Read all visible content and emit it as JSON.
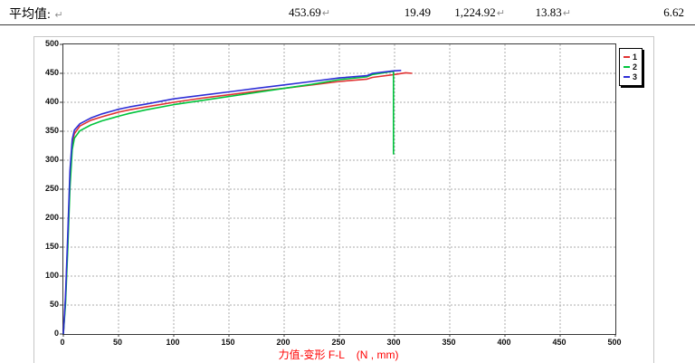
{
  "header": {
    "label": "平均值:",
    "label_mark": "↵",
    "values": [
      {
        "text": "453.69",
        "mark": "↵"
      },
      {
        "text": "19.49",
        "mark": ""
      },
      {
        "text": "1,224.92",
        "mark": "↵"
      },
      {
        "text": "13.83",
        "mark": "↵"
      },
      {
        "text": "6.62",
        "mark": ""
      }
    ]
  },
  "chart_data": {
    "type": "line",
    "title": "",
    "xlabel": "力值-变形 F-L    (N , mm)",
    "xlabel_color": "#ff0000",
    "ylabel": "",
    "xlim": [
      0,
      500
    ],
    "ylim": [
      0,
      500
    ],
    "x_ticks": [
      0,
      50,
      100,
      150,
      200,
      250,
      300,
      350,
      400,
      450,
      500
    ],
    "y_ticks": [
      0,
      50,
      100,
      150,
      200,
      250,
      300,
      350,
      400,
      450,
      500
    ],
    "grid": "dashed",
    "grid_color": "#ababab",
    "axis_color": "#383838",
    "legend_position": "top-right-outside",
    "series": [
      {
        "name": "1",
        "color": "#e03232",
        "points": [
          [
            0,
            0
          ],
          [
            2,
            60
          ],
          [
            4,
            160
          ],
          [
            6,
            270
          ],
          [
            8,
            330
          ],
          [
            10,
            346
          ],
          [
            15,
            359
          ],
          [
            25,
            369
          ],
          [
            35,
            375
          ],
          [
            50,
            383
          ],
          [
            60,
            387
          ],
          [
            75,
            392
          ],
          [
            100,
            400
          ],
          [
            125,
            407
          ],
          [
            150,
            413
          ],
          [
            175,
            419
          ],
          [
            200,
            424
          ],
          [
            225,
            430
          ],
          [
            250,
            436
          ],
          [
            275,
            440
          ],
          [
            280,
            443
          ],
          [
            300,
            448
          ],
          [
            310,
            451
          ],
          [
            316,
            450
          ]
        ]
      },
      {
        "name": "2",
        "color": "#00c43c",
        "points": [
          [
            0,
            0
          ],
          [
            2,
            52
          ],
          [
            4,
            148
          ],
          [
            6,
            252
          ],
          [
            8,
            318
          ],
          [
            10,
            338
          ],
          [
            15,
            351
          ],
          [
            25,
            361
          ],
          [
            35,
            368
          ],
          [
            50,
            376
          ],
          [
            60,
            381
          ],
          [
            75,
            387
          ],
          [
            100,
            396
          ],
          [
            125,
            403
          ],
          [
            150,
            410
          ],
          [
            175,
            417
          ],
          [
            200,
            424
          ],
          [
            225,
            431
          ],
          [
            250,
            439
          ],
          [
            275,
            444
          ],
          [
            280,
            448
          ],
          [
            290,
            451
          ],
          [
            297,
            453
          ],
          [
            299,
            453
          ],
          [
            299,
            310
          ]
        ]
      },
      {
        "name": "3",
        "color": "#2e2ed6",
        "points": [
          [
            0,
            0
          ],
          [
            2,
            66
          ],
          [
            4,
            172
          ],
          [
            6,
            282
          ],
          [
            8,
            336
          ],
          [
            10,
            352
          ],
          [
            15,
            363
          ],
          [
            25,
            373
          ],
          [
            35,
            380
          ],
          [
            50,
            388
          ],
          [
            60,
            392
          ],
          [
            75,
            397
          ],
          [
            100,
            406
          ],
          [
            125,
            412
          ],
          [
            150,
            418
          ],
          [
            175,
            424
          ],
          [
            200,
            430
          ],
          [
            225,
            436
          ],
          [
            250,
            442
          ],
          [
            275,
            446
          ],
          [
            280,
            450
          ],
          [
            298,
            454
          ],
          [
            306,
            455
          ]
        ]
      }
    ]
  }
}
